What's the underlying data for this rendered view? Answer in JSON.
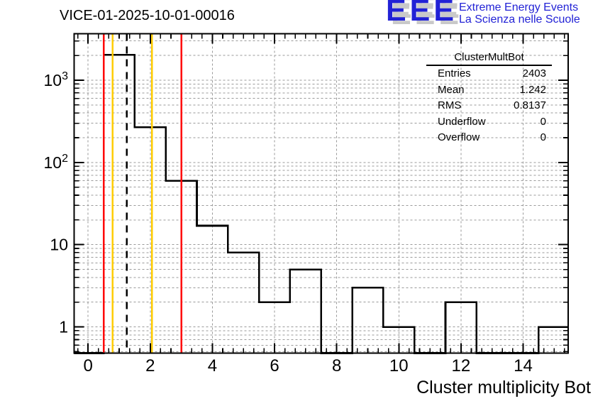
{
  "page": {
    "title": "VICE-01-2025-10-01-00016"
  },
  "logo": {
    "acronym": "EEE",
    "line1": "Extreme Energy Events",
    "line2": "La Scienza nelle Scuole",
    "color": "#2222d6"
  },
  "stats": {
    "title": "ClusterMultBot",
    "rows": [
      {
        "label": "Entries",
        "value": "2403"
      },
      {
        "label": "Mean",
        "value": "1.242"
      },
      {
        "label": "RMS",
        "value": "0.8137"
      },
      {
        "label": "Underflow",
        "value": "0"
      },
      {
        "label": "Overflow",
        "value": "0"
      }
    ]
  },
  "chart_data": {
    "type": "bar",
    "subtype": "step-histogram",
    "title": "VICE-01-2025-10-01-00016",
    "x_axis": {
      "title": "Cluster multiplicity Bot",
      "range": [
        -0.45,
        15.45
      ],
      "major_ticks": [
        {
          "value": 0,
          "label": "0"
        },
        {
          "value": 2,
          "label": "2"
        },
        {
          "value": 4,
          "label": "4"
        },
        {
          "value": 6,
          "label": "6"
        },
        {
          "value": 8,
          "label": "8"
        },
        {
          "value": 10,
          "label": "10"
        },
        {
          "value": 12,
          "label": "12"
        },
        {
          "value": 14,
          "label": "14"
        }
      ],
      "minor_tick_step": 0.33333
    },
    "y_axis": {
      "scale": "log",
      "range": [
        0.48,
        3675
      ],
      "major_ticks": [
        {
          "value": 1,
          "label": "1",
          "exp": ""
        },
        {
          "value": 10,
          "label": "10",
          "exp": ""
        },
        {
          "value": 100,
          "label": "10",
          "exp": "2"
        },
        {
          "value": 1000,
          "label": "10",
          "exp": "3"
        }
      ]
    },
    "grid": true,
    "bin_width": 1,
    "bin_centers": [
      1,
      2,
      3,
      4,
      5,
      6,
      7,
      8,
      9,
      10,
      11,
      12,
      13,
      14,
      15
    ],
    "values": [
      2035,
      269,
      60,
      17,
      8,
      2,
      5,
      0,
      3,
      1,
      0,
      2,
      0,
      0,
      1
    ],
    "marker_lines": [
      {
        "name": "red-lower-limit",
        "x": 0.5,
        "color": "#ff0000",
        "style": "solid"
      },
      {
        "name": "yellow-lower-limit",
        "x": 0.79,
        "color": "#ffcc00",
        "style": "solid"
      },
      {
        "name": "mean-line",
        "x": 1.242,
        "color": "#000000",
        "style": "dashed"
      },
      {
        "name": "yellow-upper-limit",
        "x": 2.06,
        "color": "#ffcc00",
        "style": "solid"
      },
      {
        "name": "red-upper-limit",
        "x": 3.0,
        "color": "#ff0000",
        "style": "solid"
      }
    ],
    "style": {
      "line_color": "#000000",
      "grid_color": "#9a9a9a",
      "frame_color": "#000000",
      "background": "#ffffff"
    }
  }
}
